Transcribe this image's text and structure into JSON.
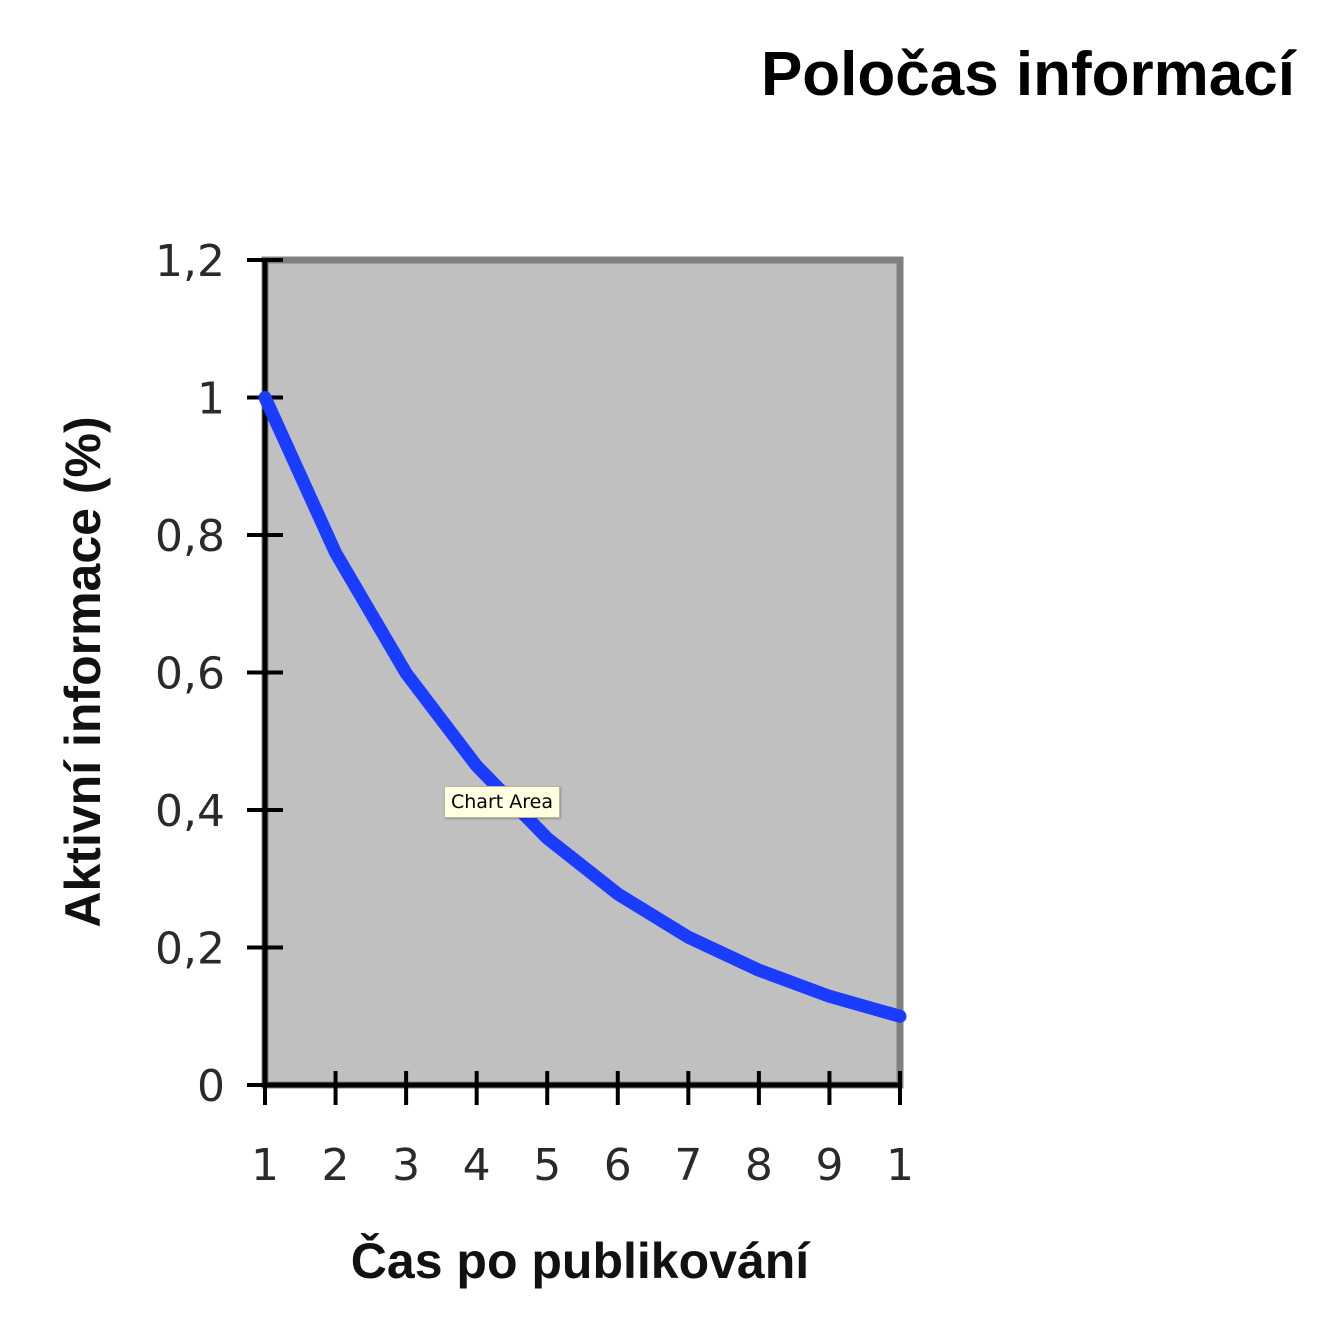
{
  "chart_data": {
    "type": "line",
    "title": "Poločas informací",
    "xlabel": "Čas po publikování",
    "ylabel": "Aktivní informace (%)",
    "categories": [
      "1",
      "2",
      "3",
      "4",
      "5",
      "6",
      "7",
      "8",
      "9",
      "1"
    ],
    "y_ticks": [
      "0",
      "0,2",
      "0,4",
      "0,6",
      "0,8",
      "1",
      "1,2"
    ],
    "ylim": [
      0,
      1.2
    ],
    "series": [
      {
        "values": [
          1.0,
          0.774,
          0.599,
          0.464,
          0.359,
          0.278,
          0.215,
          0.167,
          0.129,
          0.1
        ]
      }
    ],
    "grid": false,
    "legend": "none",
    "colors": {
      "line": "#1a3cff",
      "plot_background": "#c0c0c0",
      "plot_border": "#808080",
      "axis": "#000000"
    }
  },
  "tooltip": {
    "text": "Chart Area"
  }
}
